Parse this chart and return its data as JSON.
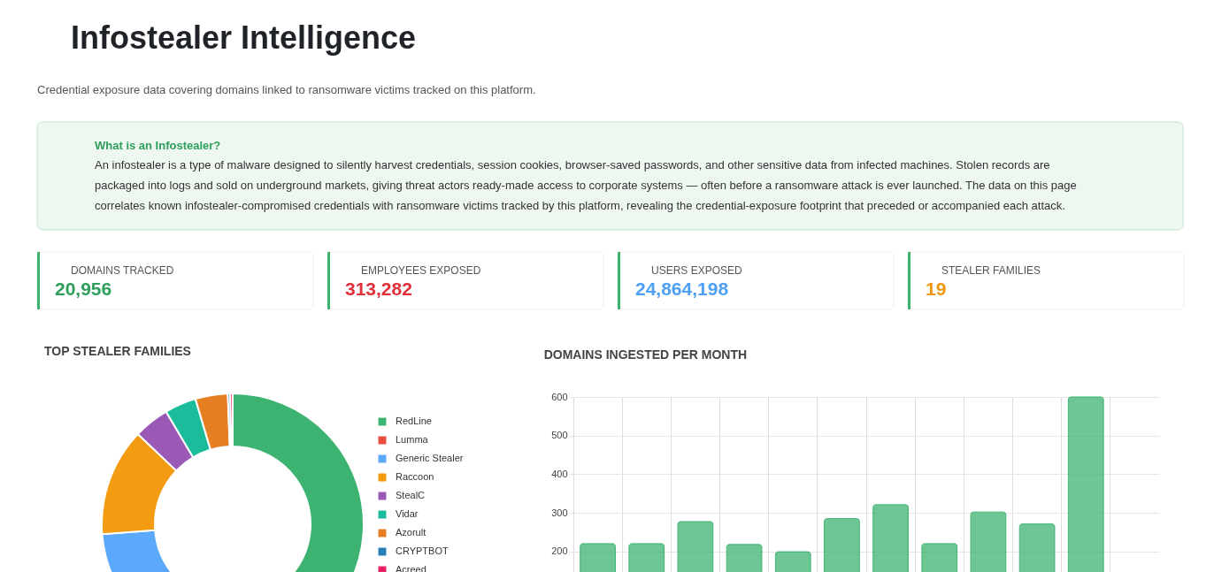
{
  "chart_data": [
    {
      "type": "other",
      "title": "Infostealer Intelligence",
      "subtitle": "Credential exposure data covering domains linked to ransomware victims tracked on this platform.",
      "annotations": [
        "What is an Infostealer?",
        "An infostealer is a type of malware designed to silently harvest credentials, session cookies, browser-saved passwords, and other sensitive data from infected machines. Stolen records are packaged into logs and sold on underground markets, giving threat actors ready-made access to corporate systems — often before a ransomware attack is ever launched. The data on this page correlates known infostealer-compromised credentials with ransomware victims tracked by this platform, revealing the credential-exposure footprint that preceded or accompanied each attack.",
        "DOMAINS TRACKED",
        "20,956",
        "EMPLOYEES EXPOSED",
        "313,282",
        "USERS EXPOSED",
        "24,864,198",
        "STEALER FAMILIES",
        "19"
      ]
    },
    {
      "type": "donut",
      "title": "TOP STEALER FAMILIES",
      "categories": [
        "RedLine",
        "Lumma",
        "Generic Stealer",
        "Raccoon",
        "StealC",
        "Vidar",
        "Azorult",
        "CRYPTBOT",
        "Acreed"
      ],
      "values": [
        52.2,
        null,
        21.6,
        13.3,
        4.4,
        3.9,
        4.0,
        0.3,
        0.3
      ],
      "colors": [
        "#3cb371",
        "#e74c3c",
        "#5aa9fa",
        "#f39c12",
        "#9b59b6",
        "#1abc9c",
        "#e67e22",
        "#2980b9",
        "#e91e63"
      ],
      "legend": "right"
    },
    {
      "type": "bar",
      "title": "DOMAINS INGESTED PER MONTH",
      "categories": [
        null,
        null,
        null,
        null,
        null,
        null,
        null,
        null,
        null,
        null,
        null,
        null
      ],
      "values": [
        220,
        220,
        277,
        218,
        199,
        285,
        321,
        220,
        302,
        271,
        600,
        null
      ],
      "color": "#3cb371",
      "ylim": [
        0,
        600
      ],
      "yticks": [
        200,
        300,
        400,
        500,
        600
      ],
      "grid": true,
      "tick_labels": "y"
    }
  ]
}
